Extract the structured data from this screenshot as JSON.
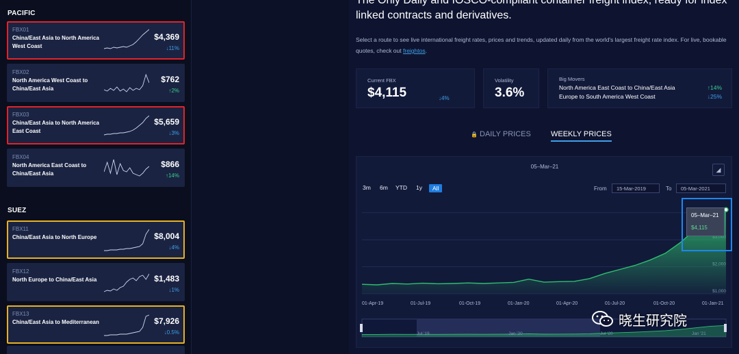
{
  "sidebar": {
    "sections": [
      {
        "title": "PACIFIC"
      },
      {
        "title": "SUEZ"
      }
    ],
    "cards": [
      {
        "code": "FBX01",
        "route": "China/East Asia to North America West Coast",
        "price": "$4,369",
        "change": "↓11%",
        "dir": "down",
        "highlight": "red"
      },
      {
        "code": "FBX02",
        "route": "North America West Coast to China/East Asia",
        "price": "$762",
        "change": "↑2%",
        "dir": "up",
        "highlight": ""
      },
      {
        "code": "FBX03",
        "route": "China/East Asia to North America East Coast",
        "price": "$5,659",
        "change": "↓3%",
        "dir": "down",
        "highlight": "red"
      },
      {
        "code": "FBX04",
        "route": "North America East Coast to China/East Asia",
        "price": "$866",
        "change": "↑14%",
        "dir": "up",
        "highlight": ""
      },
      {
        "code": "FBX11",
        "route": "China/East Asia to North Europe",
        "price": "$8,004",
        "change": "↓4%",
        "dir": "down",
        "highlight": "yellow"
      },
      {
        "code": "FBX12",
        "route": "North Europe to China/East Asia",
        "price": "$1,483",
        "change": "↓1%",
        "dir": "down",
        "highlight": ""
      },
      {
        "code": "FBX13",
        "route": "China/East Asia to Mediterranean",
        "price": "$7,926",
        "change": "↓0.5%",
        "dir": "down",
        "highlight": "yellow"
      }
    ]
  },
  "main": {
    "headline": "The Only Daily and IOSCO-compliant container freight index, ready for index linked contracts and derivatives.",
    "desc_before": "Select a route to see live international freight rates, prices and trends, updated daily from the world's largest freight rate index. For live, bookable quotes, check out ",
    "desc_link": "freightos",
    "desc_after": ".",
    "stats": {
      "current_label": "Current FBX",
      "current_value": "$4,115",
      "current_change": "↓4%",
      "volatility_label": "Volatility",
      "volatility_value": "3.6%",
      "movers_label": "Big Movers",
      "movers": [
        {
          "route": "North America East Coast to China/East Asia",
          "change": "↑14%",
          "dir": "up"
        },
        {
          "route": "Europe to South America West Coast",
          "change": "↓25%",
          "dir": "down"
        }
      ]
    },
    "tabs": {
      "daily": "DAILY PRICES",
      "weekly": "WEEKLY PRICES"
    },
    "chart": {
      "top_date": "05–Mar–21",
      "zoom": [
        "3m",
        "6m",
        "YTD",
        "1y",
        "All"
      ],
      "active_zoom": "All",
      "from_label": "From",
      "from_value": "15-Mar-2019",
      "to_label": "To",
      "to_value": "05-Mar-2021",
      "tooltip_date": "05–Mar–21",
      "tooltip_value": "$4,115",
      "navigator_labels": [
        "Jul '19",
        "Jan '20",
        "Jul '20",
        "Jan '21"
      ]
    }
  },
  "chart_data": {
    "type": "area",
    "title": "",
    "x": [
      "15-Mar-19",
      "01-Apr-19",
      "01-May-19",
      "01-Jun-19",
      "01-Jul-19",
      "01-Aug-19",
      "01-Sep-19",
      "01-Oct-19",
      "01-Nov-19",
      "01-Dec-19",
      "01-Jan-20",
      "01-Feb-20",
      "01-Mar-20",
      "01-Apr-20",
      "01-May-20",
      "01-Jun-20",
      "01-Jul-20",
      "01-Aug-20",
      "01-Sep-20",
      "01-Oct-20",
      "01-Nov-20",
      "01-Dec-20",
      "01-Jan-21",
      "15-Feb-21",
      "05-Mar-21"
    ],
    "values": [
      1350,
      1330,
      1380,
      1360,
      1390,
      1370,
      1380,
      1400,
      1380,
      1400,
      1420,
      1540,
      1430,
      1450,
      1460,
      1560,
      1750,
      1900,
      2050,
      2250,
      2500,
      2900,
      3400,
      3900,
      4115
    ],
    "x_ticks": [
      "01-Apr-19",
      "01-Jul-19",
      "01-Oct-19",
      "01-Jan-20",
      "01-Apr-20",
      "01-Jul-20",
      "01-Oct-20",
      "01-Jan-21"
    ],
    "y_ticks": [
      "$1,000",
      "$2,000",
      "$3,000"
    ],
    "ylim": [
      1000,
      4400
    ],
    "grid": true,
    "color": "#2fbf6e"
  },
  "watermark": "晓生研究院"
}
